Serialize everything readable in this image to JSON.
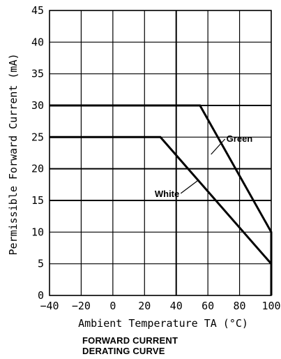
{
  "chart_data": {
    "type": "line",
    "title": "FORWARD CURRENT\nDERATING CURVE",
    "title_lines": [
      "FORWARD  CURRENT",
      "DERATING  CURVE"
    ],
    "xlabel": "Ambient Temperature TA (°C)",
    "ylabel": "Permissible Forward Current (mA)",
    "xlim": [
      -40,
      100
    ],
    "ylim": [
      0,
      45
    ],
    "x_ticks": [
      -40,
      -20,
      0,
      20,
      40,
      60,
      80,
      100
    ],
    "x_tick_labels": [
      "−40",
      "−20",
      "0",
      "20",
      "40",
      "60",
      "80",
      "100"
    ],
    "y_ticks": [
      0,
      5,
      10,
      15,
      20,
      25,
      30,
      35,
      40,
      45
    ],
    "y_tick_labels": [
      "0",
      "5",
      "10",
      "15",
      "20",
      "25",
      "30",
      "35",
      "40",
      "45"
    ],
    "grid": true,
    "emphasized_gridlines": {
      "x": [
        40
      ],
      "y": [
        15,
        20,
        30
      ]
    },
    "series": [
      {
        "name": "Green",
        "color": "#000000",
        "points": [
          [
            -40,
            30
          ],
          [
            55,
            30
          ],
          [
            100,
            10
          ],
          [
            100,
            0
          ]
        ]
      },
      {
        "name": "White",
        "color": "#000000",
        "points": [
          [
            -40,
            25
          ],
          [
            30,
            25
          ],
          [
            100,
            5
          ],
          [
            100,
            0
          ]
        ]
      }
    ],
    "annotations": [
      {
        "text": "Green",
        "series": "Green",
        "at": [
          62,
          22.5
        ]
      },
      {
        "text": "White",
        "series": "White",
        "at": [
          42,
          17
        ]
      }
    ]
  }
}
